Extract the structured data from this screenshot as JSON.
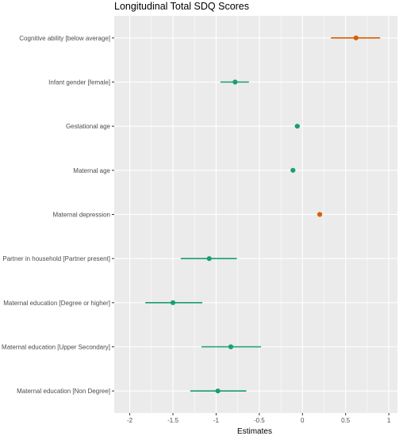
{
  "chart_data": {
    "type": "scatter",
    "title": "Longitudinal Total SDQ Scores",
    "xlabel": "Estimates",
    "ylabel": "",
    "xlim": [
      -2.18,
      1.1
    ],
    "xticks": [
      -2,
      -1.5,
      -1,
      -0.5,
      0,
      0.5,
      1
    ],
    "xtick_labels": [
      "-2",
      "-1.5",
      "-1",
      "-0.5",
      "0",
      "0.5",
      "1"
    ],
    "grid": true,
    "legend": "none",
    "colors": {
      "positive": "#d95f02",
      "negative": "#1b9e77",
      "panel": "#ebebeb",
      "grid": "#ffffff"
    },
    "points": [
      {
        "label": "Cognitive ability [below average]",
        "estimate": 0.62,
        "ci_low": 0.33,
        "ci_high": 0.9,
        "sign": "positive"
      },
      {
        "label": "Infant gender [female]",
        "estimate": -0.78,
        "ci_low": -0.95,
        "ci_high": -0.62,
        "sign": "negative"
      },
      {
        "label": "Gestational age",
        "estimate": -0.06,
        "ci_low": -0.09,
        "ci_high": -0.03,
        "sign": "negative"
      },
      {
        "label": "Maternal age",
        "estimate": -0.11,
        "ci_low": -0.11,
        "ci_high": -0.11,
        "sign": "negative"
      },
      {
        "label": "Maternal depression",
        "estimate": 0.2,
        "ci_low": 0.2,
        "ci_high": 0.2,
        "sign": "positive"
      },
      {
        "label": "Partner in household [Partner present]",
        "estimate": -1.08,
        "ci_low": -1.41,
        "ci_high": -0.76,
        "sign": "negative"
      },
      {
        "label": "Maternal education [Degree or higher]",
        "estimate": -1.5,
        "ci_low": -1.82,
        "ci_high": -1.16,
        "sign": "negative"
      },
      {
        "label": "Maternal education [Upper Secondary]",
        "estimate": -0.83,
        "ci_low": -1.17,
        "ci_high": -0.48,
        "sign": "negative"
      },
      {
        "label": "Maternal education [Non Degree]",
        "estimate": -0.98,
        "ci_low": -1.3,
        "ci_high": -0.65,
        "sign": "negative"
      }
    ]
  }
}
